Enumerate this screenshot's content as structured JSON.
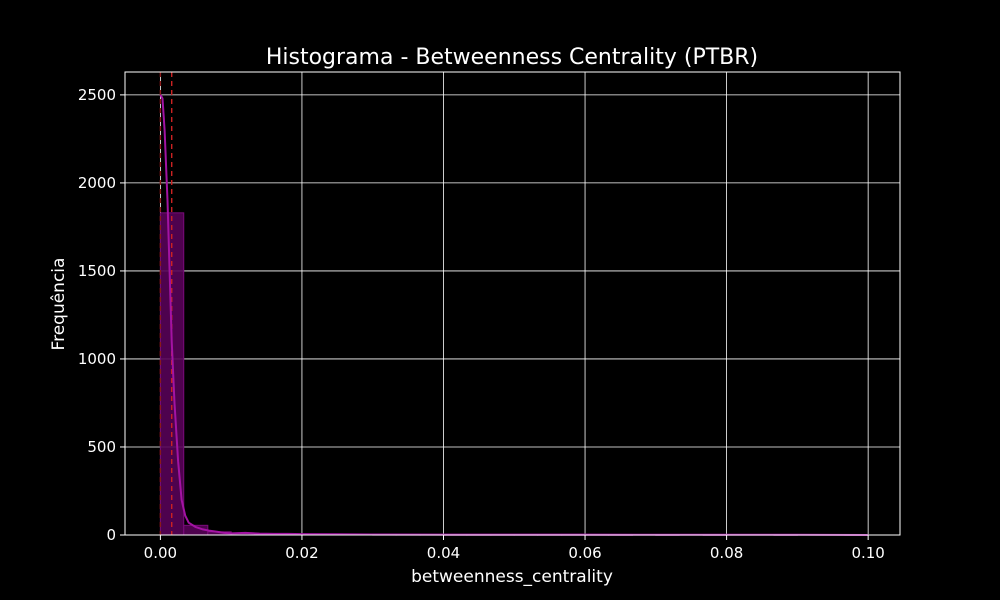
{
  "chart_data": {
    "type": "bar",
    "title": "Histograma - Betweenness Centrality (PTBR)",
    "xlabel": "betweenness_centrality",
    "ylabel": "Frequência",
    "xlim": [
      -0.005,
      0.1045
    ],
    "ylim": [
      0,
      2630
    ],
    "grid": true,
    "x_ticks": [
      0.0,
      0.02,
      0.04,
      0.06,
      0.08,
      0.1
    ],
    "x_tick_labels": [
      "0.00",
      "0.02",
      "0.04",
      "0.06",
      "0.08",
      "0.10"
    ],
    "y_ticks": [
      0,
      500,
      1000,
      1500,
      2000,
      2500
    ],
    "y_tick_labels": [
      "0",
      "500",
      "1000",
      "1500",
      "2000",
      "2500"
    ],
    "bin_edges": [
      0.0,
      0.0033,
      0.0067,
      0.01,
      0.0133,
      0.0167,
      0.02,
      0.0233,
      0.0267,
      0.03,
      0.0333,
      0.0367,
      0.04,
      0.0433,
      0.0467,
      0.05,
      0.0533,
      0.0567,
      0.06,
      0.0633,
      0.0667,
      0.07,
      0.0733,
      0.0767,
      0.08,
      0.0833,
      0.0867,
      0.09,
      0.0933,
      0.0967,
      0.1
    ],
    "counts": [
      1830,
      55,
      18,
      10,
      6,
      5,
      4,
      3,
      3,
      2,
      2,
      2,
      1,
      1,
      1,
      1,
      1,
      1,
      1,
      1,
      0,
      1,
      0,
      1,
      0,
      0,
      1,
      0,
      0,
      1
    ],
    "kde": {
      "x": [
        0.0,
        0.0003,
        0.0006,
        0.001,
        0.0013,
        0.0016,
        0.002,
        0.0025,
        0.003,
        0.0035,
        0.004,
        0.005,
        0.006,
        0.007,
        0.008,
        0.009,
        0.01,
        0.012,
        0.014,
        0.016,
        0.018,
        0.02,
        0.025,
        0.03,
        0.04,
        0.05,
        0.06,
        0.07,
        0.08,
        0.09,
        0.1
      ],
      "y": [
        2500,
        2480,
        2300,
        1900,
        1500,
        1100,
        750,
        420,
        200,
        110,
        70,
        45,
        32,
        24,
        18,
        12,
        9,
        12,
        8,
        6,
        6,
        5,
        4,
        3,
        2,
        2,
        2,
        1,
        1,
        1,
        0
      ]
    },
    "reference_lines": [
      {
        "x": 0.0,
        "style": "dashed",
        "color": "#8b1a1a"
      },
      {
        "x": 0.0016,
        "style": "dashed",
        "color": "#cc2222"
      }
    ],
    "colors": {
      "bar_fill": "#560256",
      "bar_edge": "#7a0b7a",
      "kde_line": "#a313a3",
      "grid": "#ffffff",
      "background": "#000000",
      "text": "#ffffff"
    }
  }
}
